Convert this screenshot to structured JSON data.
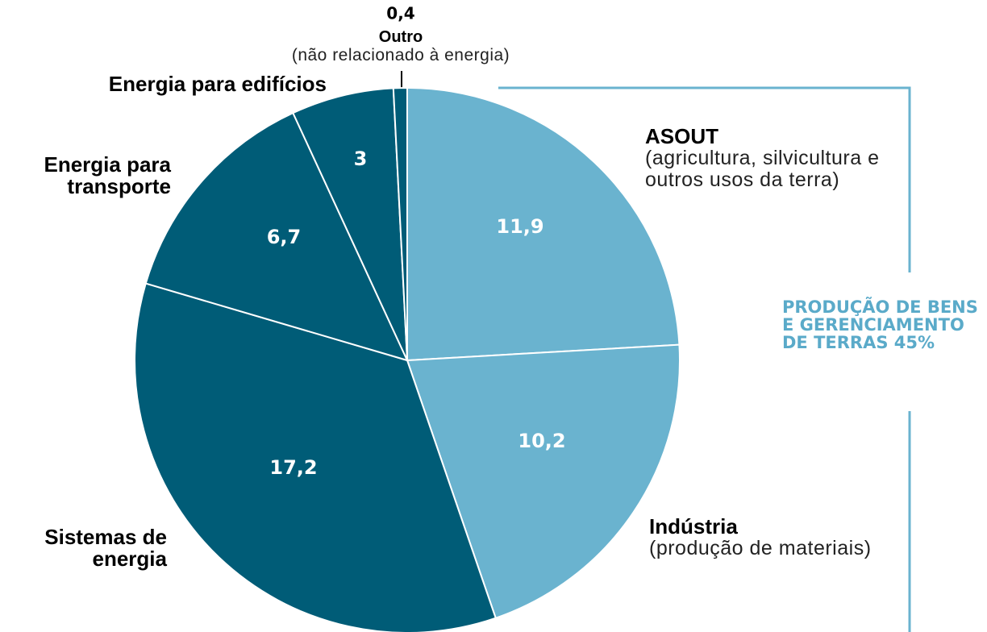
{
  "chart_data": {
    "type": "pie",
    "categories": [
      "ASOUT",
      "Indústria",
      "Sistemas de energia",
      "Energia para transporte",
      "Energia para edifícios",
      "Outro"
    ],
    "descriptions": [
      "(agricultura, silvicultura e outros usos da terra)",
      "(produção de materiais)",
      null,
      null,
      null,
      "(não relacionado à energia)"
    ],
    "values": [
      11.9,
      10.2,
      17.2,
      6.7,
      3,
      0.4
    ],
    "value_labels": [
      "11,9",
      "10,2",
      "17,2",
      "6,7",
      "3",
      "0,4"
    ],
    "colors": [
      "#6ab3cf",
      "#6ab3cf",
      "#005c77",
      "#005c77",
      "#005c77",
      "#005c77"
    ],
    "annotation": "PRODUÇÃO DE BENS E GERENCIAMENTO DE TERRAS 45%"
  }
}
